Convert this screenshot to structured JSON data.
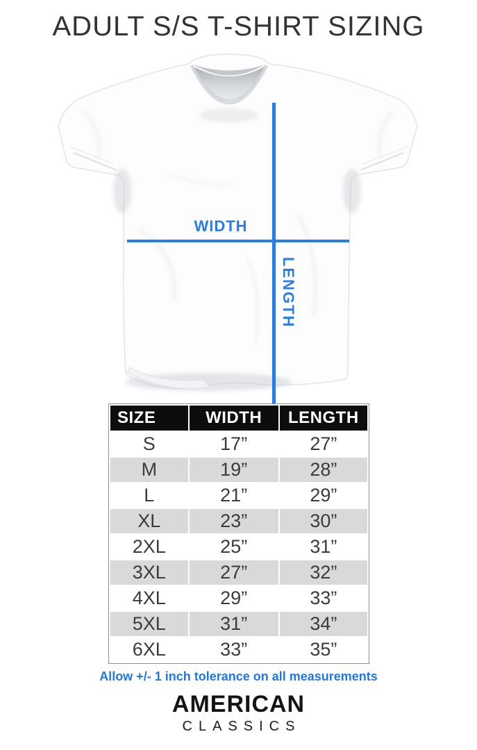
{
  "title": "ADULT S/S T-SHIRT SIZING",
  "diagram": {
    "width_label": "WIDTH",
    "length_label": "LENGTH"
  },
  "colors": {
    "accent_blue": "#2b7ce8",
    "note_blue": "#2277e8",
    "row_alt_gray": "#d9d9d9",
    "header_black": "#0d0d0d"
  },
  "size_table": {
    "headers": [
      "SIZE",
      "WIDTH",
      "LENGTH"
    ],
    "rows": [
      [
        "S",
        "17”",
        "27”"
      ],
      [
        "M",
        "19”",
        "28”"
      ],
      [
        "L",
        "21”",
        "29”"
      ],
      [
        "XL",
        "23”",
        "30”"
      ],
      [
        "2XL",
        "25”",
        "31”"
      ],
      [
        "3XL",
        "27”",
        "32”"
      ],
      [
        "4XL",
        "29”",
        "33”"
      ],
      [
        "5XL",
        "31”",
        "34”"
      ],
      [
        "6XL",
        "33”",
        "35”"
      ]
    ]
  },
  "note": "Allow +/- 1 inch tolerance on all measurements",
  "brand": {
    "line1": "AMERICAN",
    "line2": "CLASSICS"
  }
}
